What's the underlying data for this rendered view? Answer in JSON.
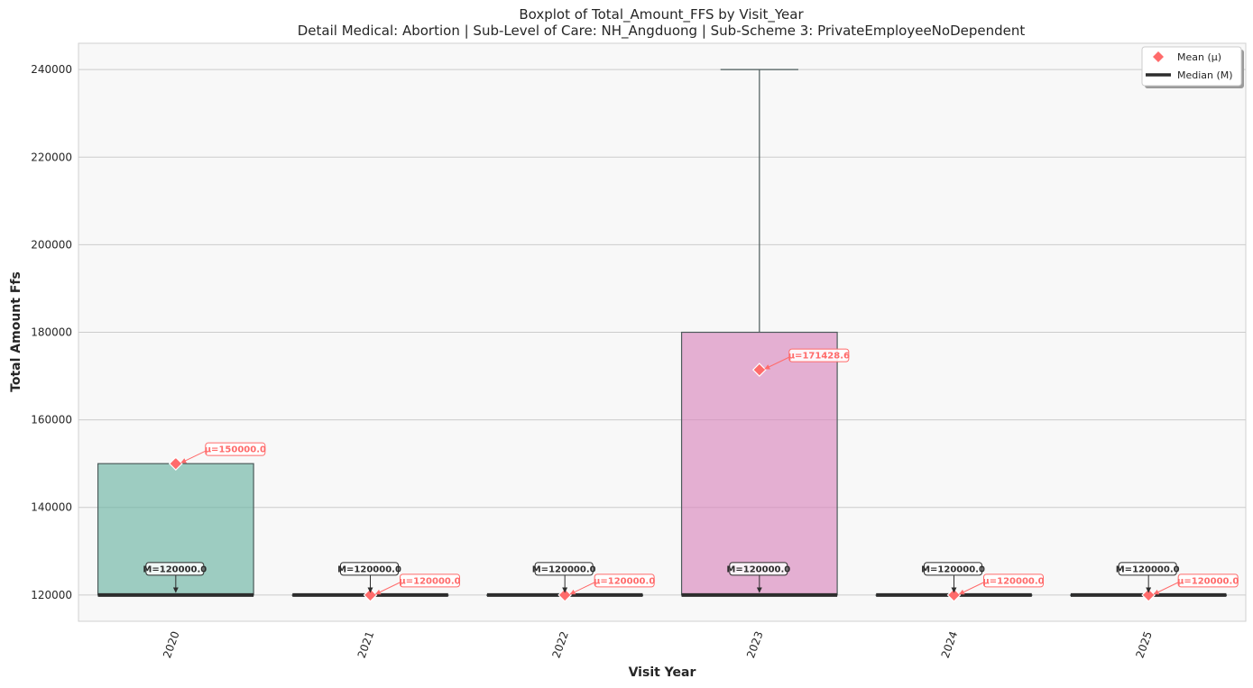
{
  "chart_data": {
    "type": "box",
    "title": "Boxplot of Total_Amount_FFS by Visit_Year",
    "subtitle": "Detail Medical: Abortion | Sub-Level of Care: NH_Angduong | Sub-Scheme 3: PrivateEmployeeNoDependent",
    "xlabel": "Visit Year",
    "ylabel": "Total Amount Ffs",
    "ylim": [
      114000,
      246000
    ],
    "yticks": [
      120000,
      140000,
      160000,
      180000,
      200000,
      220000,
      240000
    ],
    "grid": true,
    "legend_position": "top-right",
    "legend": [
      {
        "label": "Mean (μ)",
        "marker": "diamond",
        "color": "#ff6b6b"
      },
      {
        "label": "Median (M)",
        "marker": "line",
        "color": "#2d2d2d"
      }
    ],
    "categories": [
      "2020",
      "2021",
      "2022",
      "2023",
      "2024",
      "2025"
    ],
    "boxes": [
      {
        "category": "2020",
        "q1": 120000,
        "median": 120000,
        "q3": 150000,
        "whisker_low": 120000,
        "whisker_high": 150000,
        "mean": 150000.0,
        "color": "#66b2a0",
        "median_label": "M=120000.0",
        "mean_label": "μ=150000.0"
      },
      {
        "category": "2021",
        "q1": 120000,
        "median": 120000,
        "q3": 120000,
        "whisker_low": 120000,
        "whisker_high": 120000,
        "mean": 120000.0,
        "color": "#e9a47a",
        "median_label": "M=120000.0",
        "mean_label": "μ=120000.0"
      },
      {
        "category": "2022",
        "q1": 120000,
        "median": 120000,
        "q3": 120000,
        "whisker_low": 120000,
        "whisker_high": 120000,
        "mean": 120000.0,
        "color": "#8fa0cb",
        "median_label": "M=120000.0",
        "mean_label": "μ=120000.0"
      },
      {
        "category": "2023",
        "q1": 120000,
        "median": 120000,
        "q3": 180000,
        "whisker_low": 120000,
        "whisker_high": 240000,
        "mean": 171428.6,
        "color": "#d982bb",
        "median_label": "M=120000.0",
        "mean_label": "μ=171428.6"
      },
      {
        "category": "2024",
        "q1": 120000,
        "median": 120000,
        "q3": 120000,
        "whisker_low": 120000,
        "whisker_high": 120000,
        "mean": 120000.0,
        "color": "#a6d854",
        "median_label": "M=120000.0",
        "mean_label": "μ=120000.0"
      },
      {
        "category": "2025",
        "q1": 120000,
        "median": 120000,
        "q3": 120000,
        "whisker_low": 120000,
        "whisker_high": 120000,
        "mean": 120000.0,
        "color": "#ffd92f",
        "median_label": "M=120000.0",
        "mean_label": "μ=120000.0"
      }
    ],
    "colors": {
      "mean": "#ff6b6b",
      "median": "#2d2d2d",
      "grid": "#cccccc",
      "plot_background": "#f8f8f8",
      "whisker": "#4d5b5b"
    }
  }
}
